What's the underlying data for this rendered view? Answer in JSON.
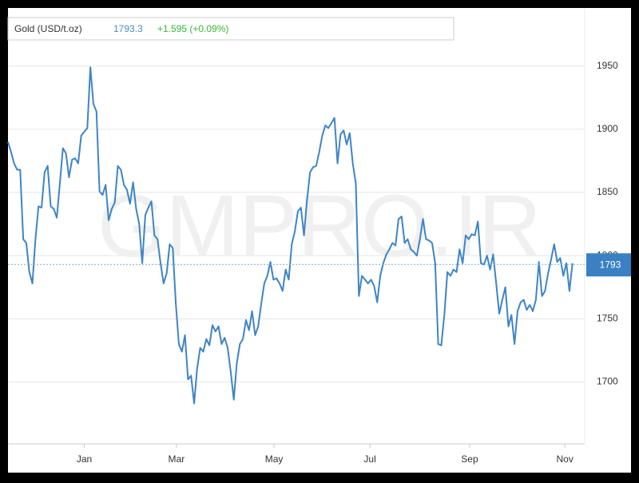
{
  "chart_data": {
    "type": "line",
    "legend_name": "Gold (USD/t.oz)",
    "legend_price": 1793.3,
    "legend_change": "+1.595 (+0.09%)",
    "watermark": "GMPRO.IR",
    "last_marker": 1793,
    "color": "#3d85c6",
    "grid": true,
    "values": [
      1890,
      1882,
      1873,
      1868,
      1868,
      1813,
      1810,
      1787,
      1778,
      1813,
      1839,
      1838,
      1866,
      1871,
      1839,
      1837,
      1830,
      1857,
      1885,
      1881,
      1862,
      1876,
      1877,
      1873,
      1895,
      1898,
      1901,
      1949,
      1920,
      1914,
      1851,
      1848,
      1856,
      1828,
      1837,
      1842,
      1871,
      1868,
      1856,
      1852,
      1841,
      1858,
      1837,
      1825,
      1794,
      1832,
      1838,
      1843,
      1816,
      1813,
      1794,
      1778,
      1786,
      1809,
      1806,
      1762,
      1730,
      1724,
      1737,
      1702,
      1705,
      1683,
      1711,
      1727,
      1724,
      1734,
      1729,
      1745,
      1740,
      1744,
      1730,
      1735,
      1727,
      1708,
      1686,
      1715,
      1730,
      1734,
      1749,
      1741,
      1756,
      1737,
      1744,
      1762,
      1778,
      1784,
      1795,
      1781,
      1782,
      1778,
      1772,
      1789,
      1781,
      1809,
      1819,
      1835,
      1838,
      1816,
      1844,
      1866,
      1870,
      1871,
      1882,
      1895,
      1903,
      1901,
      1905,
      1909,
      1873,
      1896,
      1899,
      1888,
      1897,
      1873,
      1857,
      1768,
      1784,
      1781,
      1778,
      1781,
      1776,
      1763,
      1784,
      1794,
      1801,
      1805,
      1810,
      1808,
      1829,
      1831,
      1810,
      1813,
      1805,
      1803,
      1800,
      1813,
      1829,
      1813,
      1812,
      1810,
      1794,
      1730,
      1729,
      1753,
      1787,
      1784,
      1789,
      1787,
      1805,
      1794,
      1816,
      1813,
      1817,
      1816,
      1827,
      1794,
      1793,
      1800,
      1789,
      1801,
      1778,
      1754,
      1765,
      1775,
      1744,
      1753,
      1730,
      1756,
      1763,
      1765,
      1757,
      1761,
      1756,
      1765,
      1795,
      1768,
      1772,
      1786,
      1797,
      1809,
      1795,
      1798,
      1784,
      1794,
      1772,
      1794
    ],
    "xlim": [
      0,
      189
    ],
    "xticks": [
      {
        "value": 25,
        "label": "Jan"
      },
      {
        "value": 55.2,
        "label": "Mar"
      },
      {
        "value": 87.2,
        "label": "May"
      },
      {
        "value": 118.6,
        "label": "Jul"
      },
      {
        "value": 151.3,
        "label": "Sep"
      },
      {
        "value": 182.5,
        "label": "Nov"
      }
    ],
    "ylim": [
      1651,
      1996
    ],
    "yticks": [
      1700,
      1750,
      1800,
      1850,
      1900,
      1950
    ]
  }
}
